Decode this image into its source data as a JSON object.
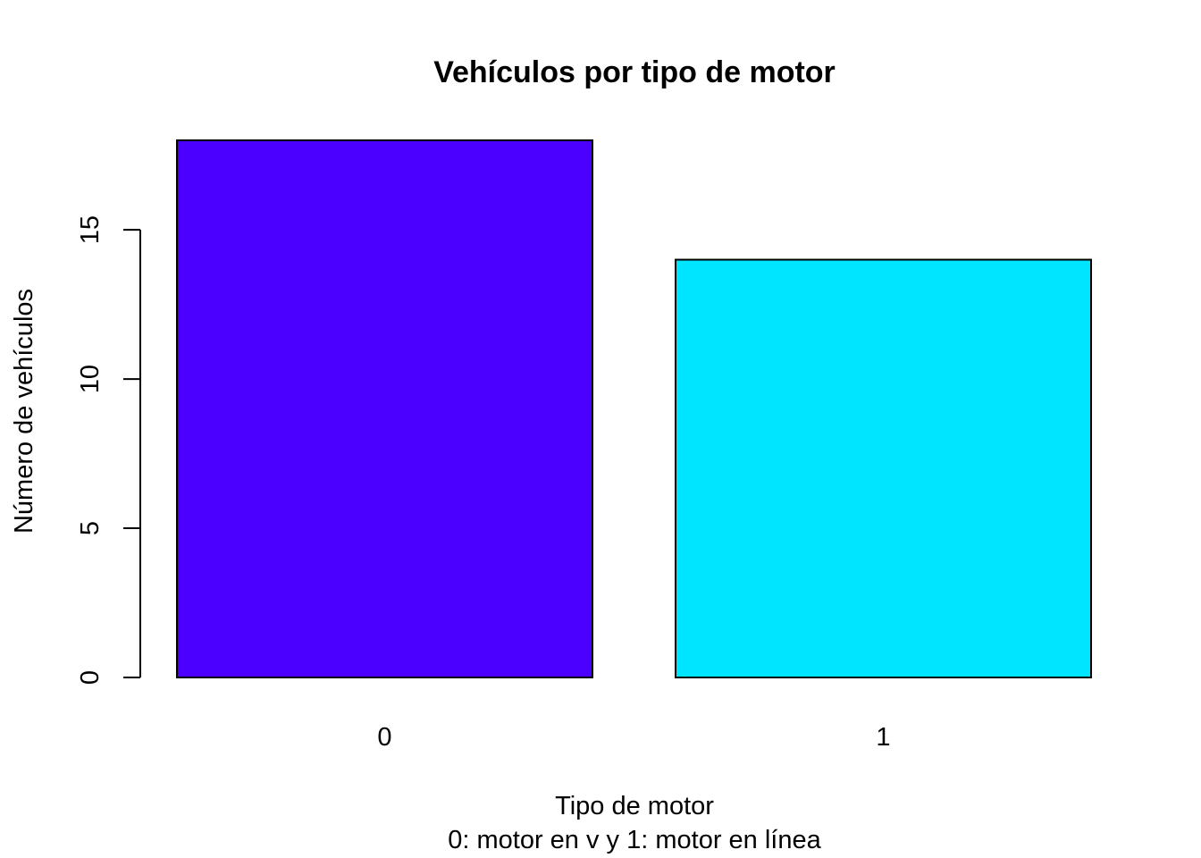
{
  "chart_data": {
    "type": "bar",
    "title": "Vehículos por tipo de motor",
    "xlabel": "Tipo de motor",
    "xlabel_sub": "0: motor en v y 1: motor en línea",
    "ylabel": "Número de vehículos",
    "categories": [
      "0",
      "1"
    ],
    "values": [
      18,
      14
    ],
    "colors": [
      "#4B00FF",
      "#00E5FF"
    ],
    "ylim": [
      0,
      18
    ],
    "yticks": [
      0,
      5,
      10,
      15
    ],
    "grid": false,
    "legend": "none"
  }
}
